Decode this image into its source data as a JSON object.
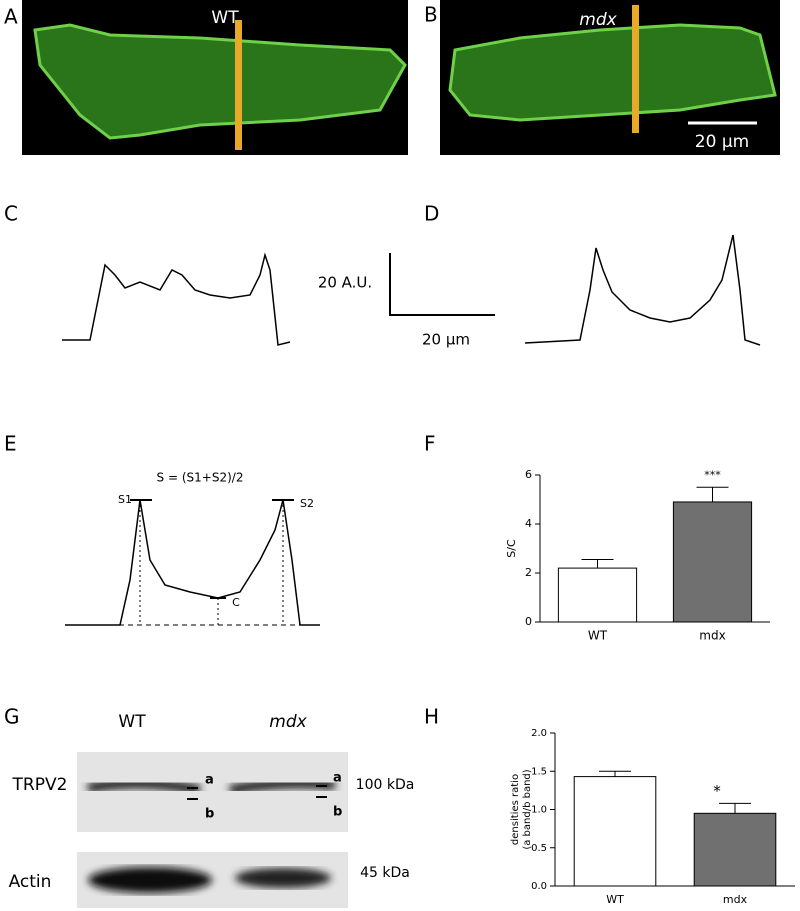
{
  "panel_labels": [
    "A",
    "B",
    "C",
    "D",
    "E",
    "F",
    "G",
    "H"
  ],
  "micrographs": {
    "a_label": "WT",
    "b_label": "mdx",
    "scale_bar": "20 µm"
  },
  "profile_scale": {
    "y_label": "20 A.U.",
    "x_label": "20 µm"
  },
  "schematic": {
    "formula": "S = (S1+S2)/2",
    "s1": "S1",
    "s2": "S2",
    "c": "C"
  },
  "blot": {
    "lanes": [
      "WT",
      "mdx"
    ],
    "rows": [
      "TRPV2",
      "Actin"
    ],
    "sizes": [
      "100 kDa",
      "45 kDa"
    ],
    "bands": [
      "a",
      "b"
    ]
  },
  "chart_data": [
    {
      "type": "bar",
      "ylabel": [
        "S/C"
      ],
      "categories": [
        "WT",
        "mdx"
      ],
      "values": [
        2.2,
        4.9
      ],
      "errors": [
        0.35,
        0.6
      ],
      "colors": [
        "#ffffff",
        "#707070"
      ],
      "annotations": [
        null,
        "***"
      ],
      "ylim": [
        0,
        6
      ],
      "yticks": [
        0,
        2,
        4,
        6
      ]
    },
    {
      "type": "bar",
      "ylabel": [
        "densities ratio",
        "(a band/b band)"
      ],
      "categories": [
        "WT",
        "mdx"
      ],
      "values": [
        1.43,
        0.95
      ],
      "errors": [
        0.07,
        0.13
      ],
      "colors": [
        "#ffffff",
        "#707070"
      ],
      "annotations": [
        null,
        "*"
      ],
      "ylim": [
        0,
        2
      ],
      "yticks": [
        {
          "value": 0,
          "label": "0.0"
        },
        0.5,
        {
          "value": 1,
          "label": "1.0"
        },
        1.5,
        {
          "value": 2,
          "label": "2.0"
        }
      ]
    }
  ]
}
